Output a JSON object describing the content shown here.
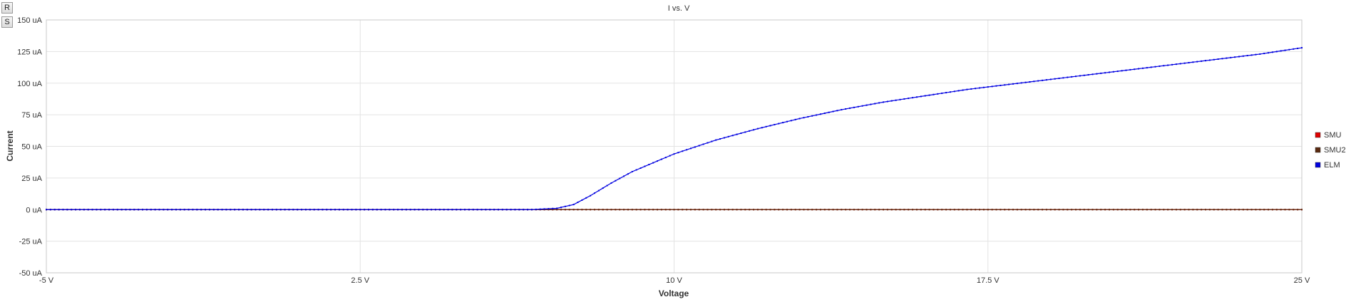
{
  "toolbar": {
    "reset_label": "R",
    "settings_label": "S"
  },
  "chart_data": {
    "type": "line",
    "title": "I vs. V",
    "xlabel": "Voltage",
    "ylabel": "Current",
    "xlim": [
      -5,
      25
    ],
    "ylim": [
      -50,
      150
    ],
    "x_ticks": [
      -5,
      2.5,
      10,
      17.5,
      25
    ],
    "x_tick_labels": [
      "-5 V",
      "2.5 V",
      "10 V",
      "17.5 V",
      "25 V"
    ],
    "y_ticks": [
      150,
      125,
      100,
      75,
      50,
      25,
      0,
      -25,
      -50
    ],
    "y_tick_labels": [
      "150 uA",
      "125 uA",
      "100 uA",
      "75 uA",
      "50 uA",
      "25 uA",
      "0 uA",
      "-25 uA",
      "-50 uA"
    ],
    "grid": true,
    "legend_position": "right",
    "x_step": 0.1,
    "series": [
      {
        "name": "SMU",
        "color": "#e00000",
        "x": [
          -5,
          25
        ],
        "y": [
          0,
          0
        ]
      },
      {
        "name": "SMU2",
        "color": "#5a2a10",
        "x": [
          -5,
          25
        ],
        "y": [
          0,
          0
        ]
      },
      {
        "name": "ELM",
        "color": "#0000e0",
        "x": [
          -5,
          6.6,
          7.2,
          7.6,
          8,
          8.5,
          9,
          9.5,
          10,
          11,
          12,
          13,
          14,
          15,
          16,
          17,
          18,
          19,
          20,
          21,
          22,
          23,
          24,
          25
        ],
        "y": [
          0,
          0,
          1,
          4,
          11,
          21,
          30,
          37,
          44,
          55,
          64,
          72,
          79,
          85,
          90,
          95,
          99,
          103,
          107,
          111,
          115,
          119,
          123,
          128
        ]
      }
    ]
  }
}
